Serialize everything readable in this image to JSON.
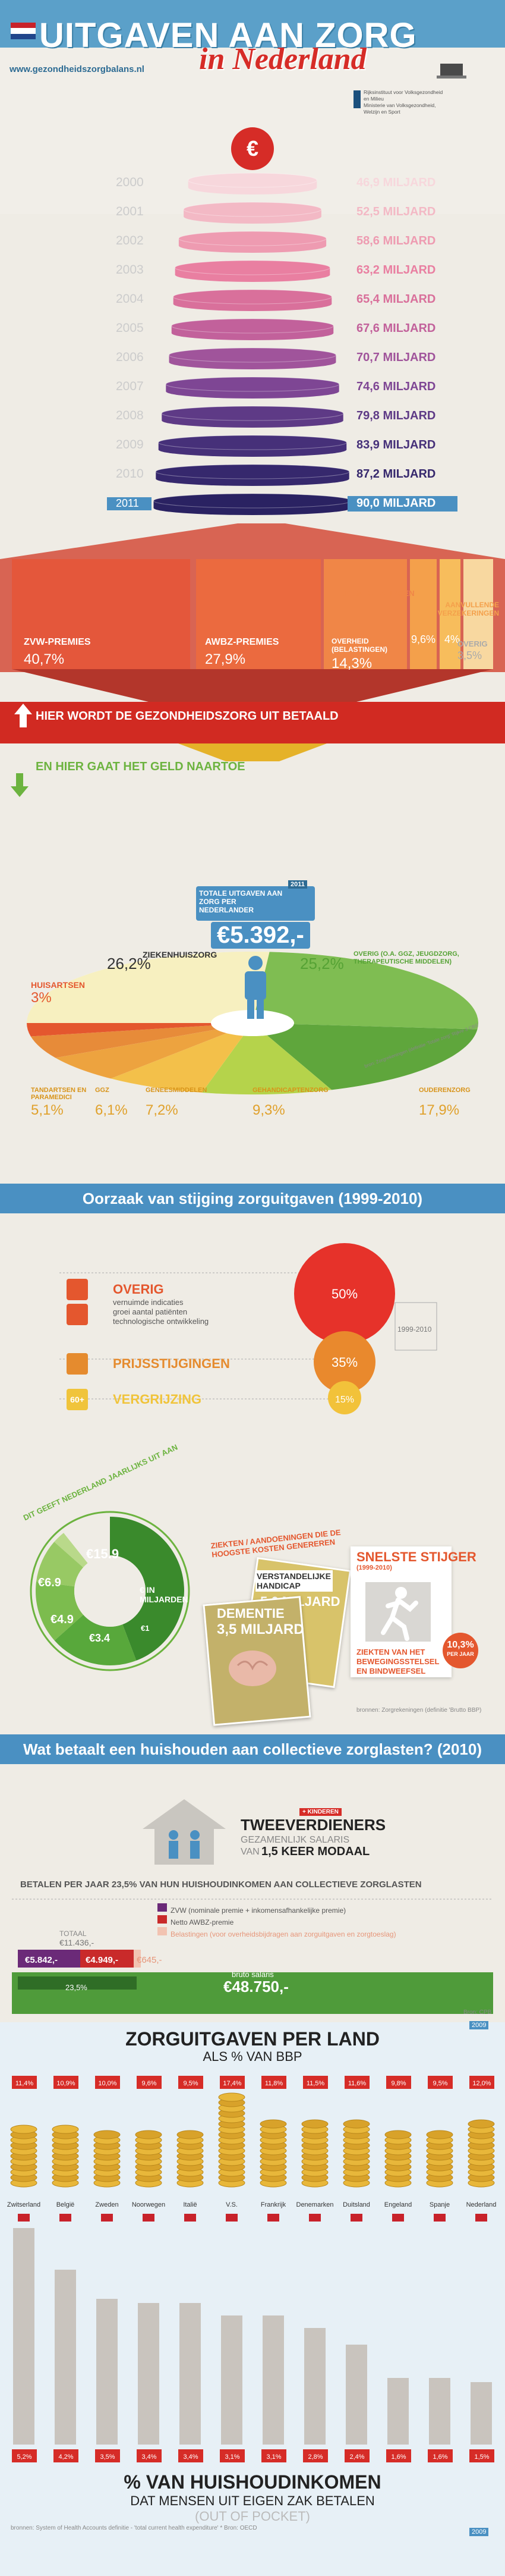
{
  "header": {
    "title": "UITGAVEN AAN ZORG",
    "subtitle": "in Nederland",
    "url": "www.gezondheidszorgbalans.nl",
    "rivm": [
      "Rijksinstituut voor Volksgezondheid",
      "en Milieu",
      "Ministerie van Volksgezondheid,",
      "Welzijn en Sport"
    ],
    "currency_icon": "euro-icon"
  },
  "chart_data": [
    {
      "type": "bar",
      "title": "",
      "years": [
        "2000",
        "2001",
        "2002",
        "2003",
        "2004",
        "2005",
        "2006",
        "2007",
        "2008",
        "2009",
        "2010",
        "2011"
      ],
      "values": [
        46.9,
        52.5,
        58.6,
        63.2,
        65.4,
        67.6,
        70.7,
        74.6,
        79.8,
        83.9,
        87.2,
        90.0
      ],
      "labels": [
        "46,9 MILJARD",
        "52,5 MILJARD",
        "58,6 MILJARD",
        "63,2 MILJARD",
        "65,4 MILJARD",
        "67,6 MILJARD",
        "70,7 MILJARD",
        "74,6 MILJARD",
        "79,8 MILJARD",
        "83,9 MILJARD",
        "87,2 MILJARD",
        "90,0 MILJARD"
      ]
    },
    {
      "type": "bar",
      "title": "",
      "categories": [
        "ZVW-PREMIES",
        "AWBZ-PREMIES",
        "OVERHEID (BELASTINGEN)",
        "EIGEN BETALINGEN",
        "AANVULLENDE VERZEKERINGEN",
        "OVERIG"
      ],
      "values": [
        40.7,
        27.9,
        14.3,
        9.6,
        4,
        3.5
      ],
      "labels": [
        "40,7%",
        "27,9%",
        "14,3%",
        "9,6%",
        "4%",
        "3,5%"
      ]
    },
    {
      "type": "pie",
      "title": "",
      "categories": [
        "ZIEKENHUISZORG",
        "OVERIG (O.A. GGZ, JEUGDZORG, THERAPEUTISCHE MIDDELEN)",
        "HUISARTSEN",
        "TANDARTSEN EN PARAMEDICI",
        "GGZ",
        "GENEESMIDDELEN",
        "GEHANDICAPTENZORG",
        "OUDERENZORG"
      ],
      "values": [
        26.2,
        25.2,
        3,
        5.1,
        6.1,
        7.2,
        9.3,
        17.9
      ],
      "labels": [
        "26,2%",
        "25,2%",
        "3%",
        "5,1%",
        "6,1%",
        "7,2%",
        "9,3%",
        "17,9%"
      ]
    },
    {
      "type": "bar",
      "title": "Oorzaak van stijging zorguitgaven (1999-2010)",
      "categories": [
        "OVERIG",
        "PRIJSSTIJGINGEN",
        "VERGRIJZING"
      ],
      "values": [
        50,
        35,
        15
      ],
      "labels": [
        "50%",
        "35%",
        "15%"
      ]
    },
    {
      "type": "pie",
      "title": "DIT GEEFT NEDERLAND JAARLIJKS UIT AAN",
      "values": [
        15.9,
        6.9,
        4.9,
        3.4,
        1
      ],
      "labels": [
        "€15.9",
        "€6.9",
        "€4.9",
        "€3.4",
        "€1"
      ]
    },
    {
      "type": "bar",
      "title": "ZORGUITGAVEN PER LAND",
      "subtitle": "ALS % VAN BBP",
      "categories": [
        "Zwitserland",
        "België",
        "Zweden",
        "Noorwegen",
        "Italië",
        "V.S.",
        "Frankrijk",
        "Denemarken",
        "Duitsland",
        "Engeland",
        "Spanje",
        "Nederland"
      ],
      "values": [
        11.4,
        10.9,
        10.0,
        9.6,
        9.5,
        17.4,
        11.8,
        11.5,
        11.6,
        9.8,
        9.5,
        12.0
      ],
      "values2": [
        5.2,
        4.2,
        3.5,
        3.4,
        3.4,
        3.1,
        3.1,
        2.8,
        2.4,
        1.6,
        1.6,
        1.5
      ],
      "labels": [
        "11,4%",
        "10,9%",
        "10,0%",
        "9,6%",
        "9,5%",
        "17,4%",
        "11,8%",
        "11,5%",
        "11,6%",
        "9,8%",
        "9,5%",
        "12,0%"
      ],
      "labels2": [
        "5,2%",
        "4,2%",
        "3,5%",
        "3,4%",
        "3,4%",
        "3,1%",
        "3,1%",
        "2,8%",
        "2,4%",
        "1,6%",
        "1,6%",
        "1,5%"
      ]
    }
  ],
  "sec1": {
    "red_label": "HIER WORDT DE GEZONDHEIDSZORG UIT BETAALD",
    "green_label": "EN HIER GAAT HET GELD NAARTOE",
    "total_label": "TOTALE UITGAVEN AAN ZORG PER NEDERLANDER",
    "total_year": "2011",
    "total_value": "€5.392,-",
    "source": "bron: Zorgrekeningen (definitie 'Totale zorg' 'Rijkre 3 CBS'"
  },
  "sec2": {
    "title": "Oorzaak van stijging zorguitgaven (1999-2010)",
    "overig": "OVERIG",
    "overig_items": [
      "vernuimde indicaties",
      "groei aantal patiënten",
      "technologische ontwikkeling"
    ],
    "period": "1999-2010",
    "prijs": "PRIJSSTIJGINGEN",
    "vergrijzing": "VERGRIJZING",
    "vergr_icon": "60+",
    "dit": "DIT GEEFT NEDERLAND JAARLIJKS UIT AAN",
    "inmld": "€ IN MILJARDEN",
    "ziekten": "ZIEKTEN / AANDOENINGEN DIE DE HOOGSTE KOSTEN GENEREREN",
    "verst": "VERSTANDELIJKE HANDICAP",
    "verst_val": "5,6 MILJARD",
    "dem": "DEMENTIE",
    "dem_val": "3,5 MILJARD",
    "snel": "SNELSTE STIJGER",
    "snel_period": "(1999-2010)",
    "snel_pct": "10,3%",
    "snel_pct2": "PER JAAR",
    "snel_desc": [
      "ZIEKTEN VAN HET",
      "BEWEGINGSSTELSEL",
      "EN BINDWEEFSEL"
    ],
    "source": "bronnen: Zorgrekeningen (definitie 'Brutto BBP)"
  },
  "sec3": {
    "title": "Wat betaalt een huishouden aan collectieve zorglasten? (2010)",
    "kinder": "+ KINDEREN",
    "tweev": "TWEEVERDIENERS",
    "gez": "GEZAMENLIJK SALARIS",
    "van": "VAN",
    "van2": "1,5 KEER MODAAL",
    "betalen": "BETALEN PER JAAR 23,5% VAN HUN HUISHOUDINKOMEN AAN COLLECTIEVE ZORGLASTEN",
    "leg1": "ZVW (nominale premie + inkomensafhankelijke premie)",
    "leg2": "Netto AWBZ-premie",
    "leg3": "Belastingen (voor overheidsbijdragen aan zorguitgaven en zorgtoeslag)",
    "totaal": "TOTAAL",
    "totaal_val": "€11.436,-",
    "v1": "€5.842,-",
    "v2": "€4.949,-",
    "v3": "€645,-",
    "bruto": "bruto salaris",
    "bruto_val": "€48.750,-",
    "pct": "23,5%",
    "bron": "Bron: CPB"
  },
  "sec4": {
    "title": "ZORGUITGAVEN PER LAND",
    "sub": "ALS % VAN BBP",
    "year": "2009",
    "pct_title": "% VAN HUISHOUDINKOMEN",
    "pct_sub1": "DAT MENSEN UIT EIGEN ZAK BETALEN",
    "pct_sub2": "(OUT OF POCKET)",
    "year2": "2009",
    "source": "bronnen: System of Health Accounts definitie - 'total current health expenditure' * Bron: OECD"
  },
  "colors": {
    "blue": "#4a90c2",
    "red": "#d62c27",
    "green": "#6cb33f",
    "orange": "#e4572e",
    "gold": "#d8a22a"
  }
}
